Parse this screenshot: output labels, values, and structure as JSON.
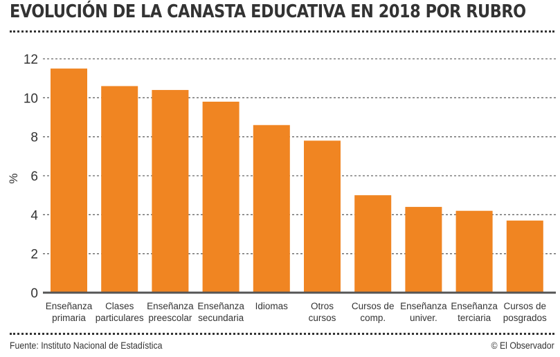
{
  "header": {
    "title": "EVOLUCIÓN DE LA CANASTA EDUCATIVA EN 2018 POR RUBRO"
  },
  "footer": {
    "source": "Fuente: Instituto Nacional de Estadística",
    "credit": "© El Observador"
  },
  "colors": {
    "bar": "#f08522",
    "text": "#333333",
    "grid": "#666666"
  },
  "chart_data": {
    "type": "bar",
    "title": "EVOLUCIÓN DE LA CANASTA EDUCATIVA EN 2018 POR RUBRO",
    "xlabel": "",
    "ylabel": "%",
    "ylim": [
      0,
      12
    ],
    "yticks": [
      0,
      2,
      4,
      6,
      8,
      10,
      12
    ],
    "grid": true,
    "legend": "none",
    "categories": [
      [
        "Enseñanza",
        "primaria"
      ],
      [
        "Clases",
        "particulares"
      ],
      [
        "Enseñanza",
        "preescolar"
      ],
      [
        "Enseñanza",
        "secundaria"
      ],
      [
        "Idiomas"
      ],
      [
        "Otros",
        "cursos"
      ],
      [
        "Cursos de",
        "comp."
      ],
      [
        "Enseñanza",
        "univer."
      ],
      [
        "Enseñanza",
        "terciaria"
      ],
      [
        "Cursos de",
        "posgrados"
      ]
    ],
    "values": [
      11.5,
      10.6,
      10.4,
      9.8,
      8.6,
      7.8,
      5.0,
      4.4,
      4.2,
      3.7
    ]
  }
}
